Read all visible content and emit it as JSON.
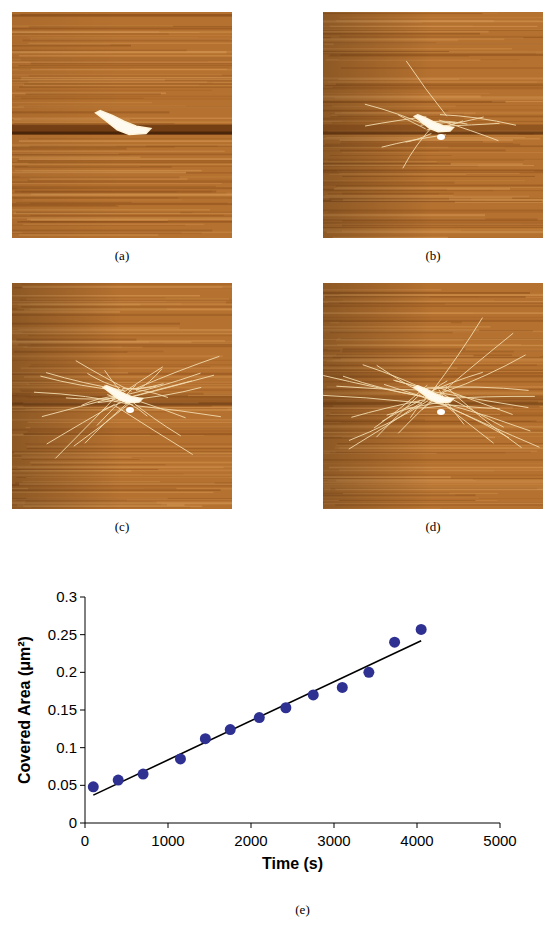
{
  "panel_labels": [
    "(a)",
    "(b)",
    "(c)",
    "(d)",
    "(e)"
  ],
  "chart_data": {
    "type": "scatter",
    "x_label": "Time (s)",
    "y_label": "Covered Area (μm²)",
    "xlim": [
      0,
      5000
    ],
    "xticks": [
      0,
      1000,
      2000,
      3000,
      4000,
      5000
    ],
    "ylim": [
      0,
      0.3
    ],
    "yticks": [
      0,
      0.05,
      0.1,
      0.15,
      0.2,
      0.25,
      0.3
    ],
    "grid": false,
    "series": [
      {
        "type": "scatter",
        "color": "#2e3192",
        "marker": "circle",
        "x": [
          100,
          400,
          700,
          1150,
          1450,
          1750,
          2100,
          2420,
          2750,
          3100,
          3420,
          3730,
          4050
        ],
        "values": [
          0.048,
          0.057,
          0.065,
          0.085,
          0.112,
          0.124,
          0.14,
          0.153,
          0.17,
          0.18,
          0.2,
          0.24,
          0.257
        ]
      },
      {
        "type": "line",
        "color": "#000000",
        "line_style": "solid",
        "x": [
          100,
          4050
        ],
        "values": [
          0.037,
          0.242
        ]
      }
    ]
  }
}
